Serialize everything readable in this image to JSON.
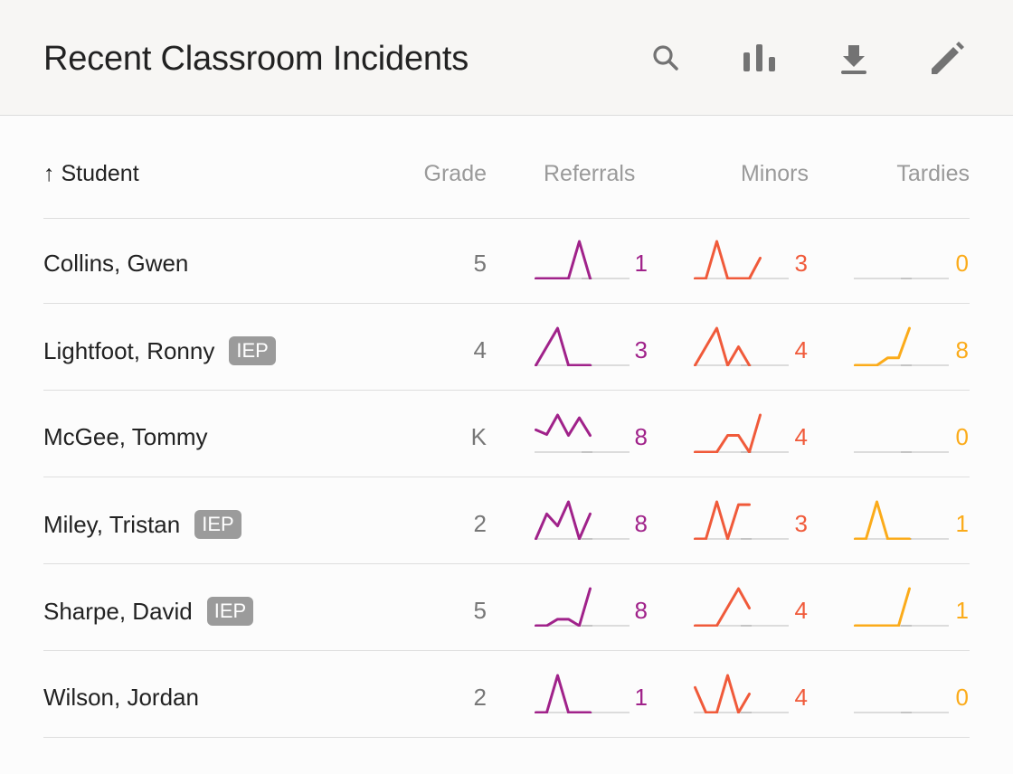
{
  "header": {
    "title": "Recent Classroom Incidents",
    "icons": [
      "search-icon",
      "bar-chart-icon",
      "download-icon",
      "edit-icon"
    ]
  },
  "columns": {
    "student": "Student",
    "sort_indicator": "↑",
    "grade": "Grade",
    "referrals": "Referrals",
    "minors": "Minors",
    "tardies": "Tardies"
  },
  "colors": {
    "referrals": "#a0228a",
    "minors": "#f05a3a",
    "tardies": "#fbab1a"
  },
  "rows": [
    {
      "name": "Collins, Gwen",
      "iep": "",
      "grade": "5",
      "referrals": {
        "total": "1",
        "trend": [
          0,
          0,
          0,
          0,
          4,
          0
        ]
      },
      "minors": {
        "total": "3",
        "trend": [
          0,
          0,
          4,
          0,
          0,
          0,
          2.2
        ]
      },
      "tardies": {
        "total": "0",
        "trend": []
      }
    },
    {
      "name": "Lightfoot, Ronny",
      "iep": "IEP",
      "grade": "4",
      "referrals": {
        "total": "3",
        "trend": [
          0,
          2,
          4,
          0,
          0,
          0
        ]
      },
      "minors": {
        "total": "4",
        "trend": [
          0,
          2,
          4,
          0,
          2,
          0
        ]
      },
      "tardies": {
        "total": "8",
        "trend": [
          0,
          0,
          0,
          0.8,
          0.8,
          4
        ]
      }
    },
    {
      "name": "McGee, Tommy",
      "iep": "",
      "grade": "K",
      "referrals": {
        "total": "8",
        "trend": [
          2.4,
          1.9,
          4,
          1.8,
          3.7,
          1.8
        ]
      },
      "minors": {
        "total": "4",
        "trend": [
          0,
          0,
          0,
          1.8,
          1.8,
          0,
          4
        ]
      },
      "tardies": {
        "total": "0",
        "trend": []
      }
    },
    {
      "name": "Miley, Tristan",
      "iep": "IEP",
      "grade": "2",
      "referrals": {
        "total": "8",
        "trend": [
          0,
          2.7,
          1.4,
          4,
          0,
          2.7
        ]
      },
      "minors": {
        "total": "3",
        "trend": [
          0,
          0,
          4,
          0,
          3.7,
          3.7
        ]
      },
      "tardies": {
        "total": "1",
        "trend": [
          0,
          0,
          4,
          0,
          0,
          0
        ]
      }
    },
    {
      "name": "Sharpe, David",
      "iep": "IEP",
      "grade": "5",
      "referrals": {
        "total": "8",
        "trend": [
          0,
          0,
          0.7,
          0.7,
          0,
          4
        ]
      },
      "minors": {
        "total": "4",
        "trend": [
          0,
          0,
          0,
          2,
          4,
          1.9
        ]
      },
      "tardies": {
        "total": "1",
        "trend": [
          0,
          0,
          0,
          0,
          0,
          4
        ]
      }
    },
    {
      "name": "Wilson, Jordan",
      "iep": "",
      "grade": "2",
      "referrals": {
        "total": "1",
        "trend": [
          0,
          0,
          4,
          0,
          0,
          0
        ]
      },
      "minors": {
        "total": "4",
        "trend": [
          2.7,
          0,
          0,
          4,
          0,
          2
        ]
      },
      "tardies": {
        "total": "0",
        "trend": []
      }
    }
  ]
}
